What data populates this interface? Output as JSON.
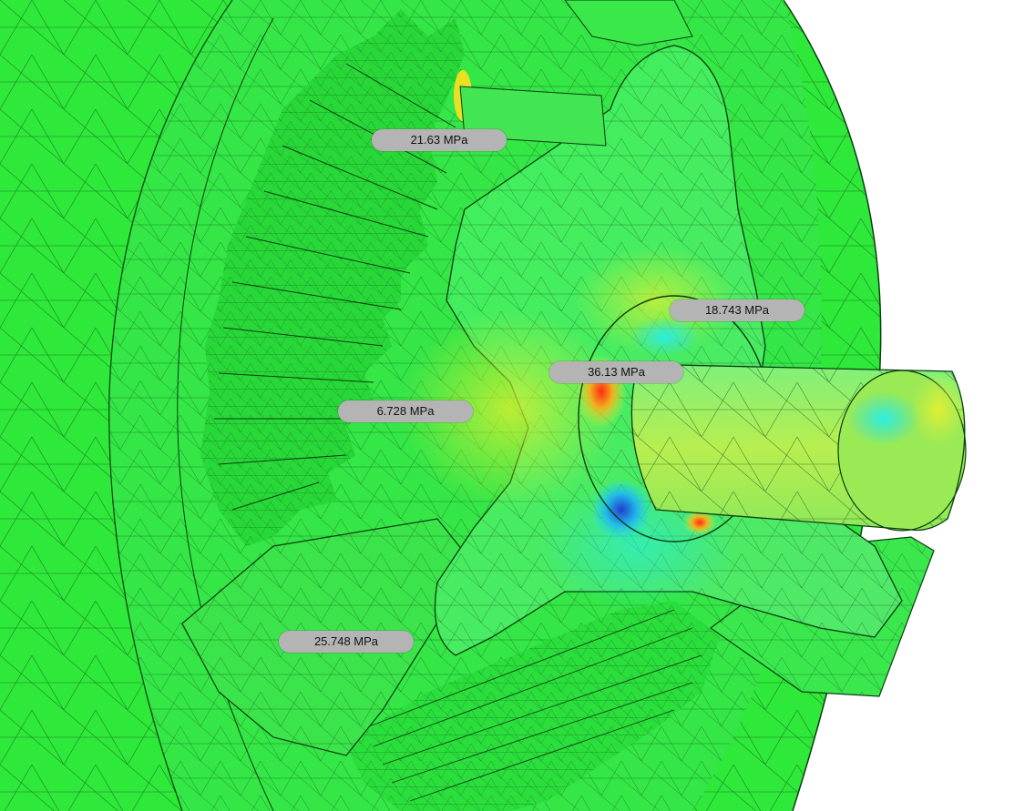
{
  "stress_probes": [
    {
      "value": "21.63 MPa"
    },
    {
      "value": "18.743 MPa"
    },
    {
      "value": "36.13 MPa"
    },
    {
      "value": "6.728 MPa"
    },
    {
      "value": "25.748 MPa"
    }
  ],
  "colors": {
    "background": "#ffffff",
    "mesh_base": "#2ee83a",
    "mesh_line": "#0b3d10",
    "low_stress": "#1f3fd0",
    "mid_low_stress": "#22e0ea",
    "mid_stress": "#d8f03a",
    "high_stress": "#ff2a12",
    "probe_label_bg": "#b4b4b4"
  }
}
